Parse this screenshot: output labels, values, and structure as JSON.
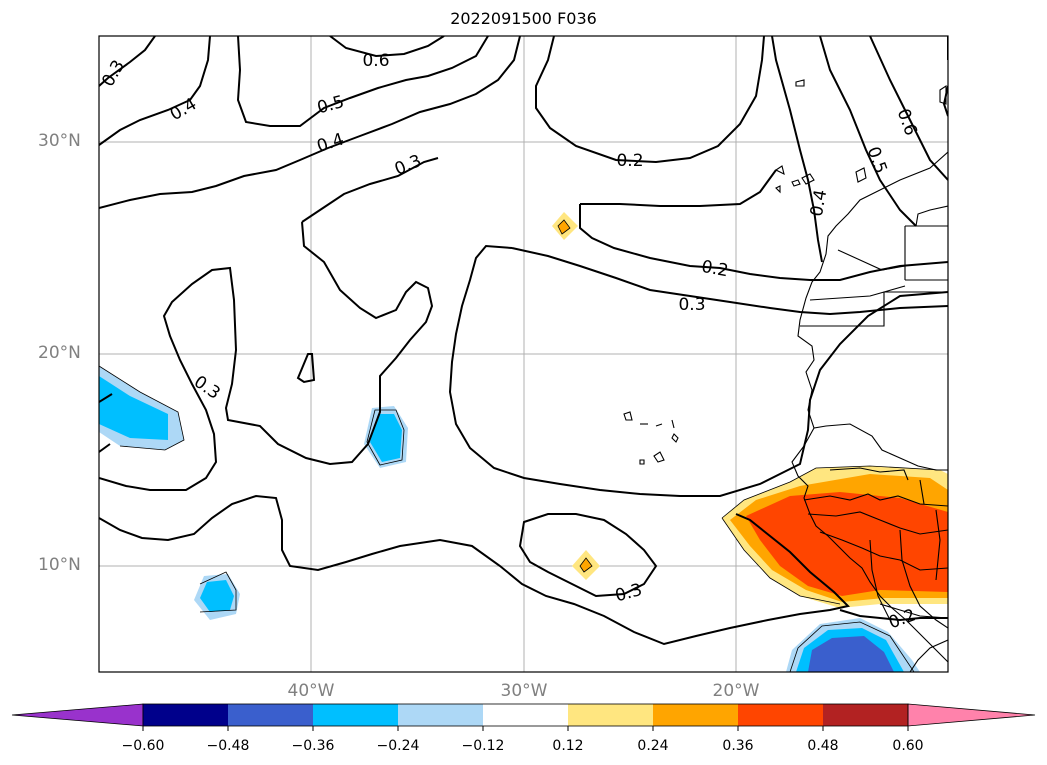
{
  "title": "2022091500 F036",
  "lat_labels": [
    "30°N",
    "20°N",
    "10°N"
  ],
  "lon_labels": [
    "40°W",
    "30°W",
    "20°W"
  ],
  "contour_labels": [
    "0.3",
    "0.4",
    "0.5",
    "0.6",
    "0.4",
    "0.3",
    "0.2",
    "0.6",
    "0.5",
    "0.4",
    "0.3",
    "0.2",
    "0.3",
    "0.3",
    "0.2"
  ],
  "colorbar": {
    "ticks": [
      "−0.60",
      "−0.48",
      "−0.36",
      "−0.24",
      "−0.12",
      "0.12",
      "0.24",
      "0.36",
      "0.48",
      "0.60"
    ],
    "colors": [
      "#9932cc",
      "#00008b",
      "#3a5fcd",
      "#00bfff",
      "#add8f6",
      "#ffffff",
      "#ffe680",
      "#ffa500",
      "#ff4500",
      "#b22222",
      "#ff82ab"
    ]
  }
}
